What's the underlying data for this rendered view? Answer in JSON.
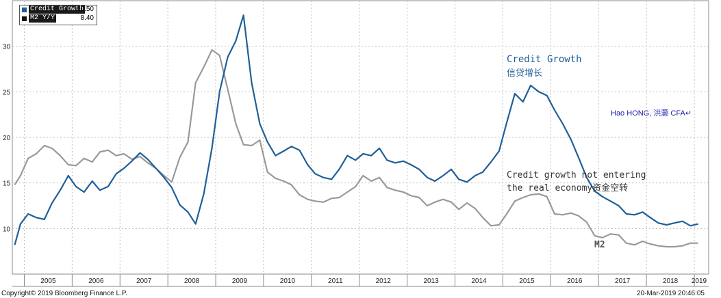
{
  "legend": {
    "items": [
      {
        "label": "Credit Growth",
        "value": "10.50",
        "color": "#1f5f99"
      },
      {
        "label": "M2 Y/Y",
        "value": "8.40",
        "color": "#111111"
      }
    ]
  },
  "annotations": {
    "credit_title": "Credit Growth",
    "credit_title_cn": "信贷增长",
    "author": "Hao HONG, 洪灏 CFA↵",
    "note_line1": "Credit growth not entering",
    "note_line2": "the real economy资金空转",
    "m2_label": "M2"
  },
  "footer": {
    "copyright": "Copyright© 2019 Bloomberg Finance L.P.",
    "timestamp": "20-Mar-2019 20:46:05"
  },
  "chart_data": {
    "type": "line",
    "x_unit": "year (decimal)",
    "xlim": [
      2004.75,
      2019.3
    ],
    "ylim": [
      5,
      35
    ],
    "yticks": [
      10,
      15,
      20,
      25,
      30
    ],
    "year_ticks": [
      "2005",
      "2006",
      "2007",
      "2008",
      "2009",
      "2010",
      "2011",
      "2012",
      "2013",
      "2014",
      "2015",
      "2016",
      "2017",
      "2018",
      "2019"
    ],
    "grid": true,
    "series": [
      {
        "name": "Credit Growth",
        "color": "#1f5f99",
        "x": [
          2004.8,
          2004.92,
          2005.08,
          2005.25,
          2005.42,
          2005.58,
          2005.75,
          2005.92,
          2006.08,
          2006.25,
          2006.42,
          2006.58,
          2006.75,
          2006.92,
          2007.08,
          2007.25,
          2007.42,
          2007.58,
          2007.75,
          2007.92,
          2008.08,
          2008.25,
          2008.42,
          2008.58,
          2008.75,
          2008.92,
          2009.08,
          2009.25,
          2009.42,
          2009.58,
          2009.75,
          2009.92,
          2010.08,
          2010.25,
          2010.42,
          2010.58,
          2010.75,
          2010.92,
          2011.08,
          2011.25,
          2011.42,
          2011.58,
          2011.75,
          2011.92,
          2012.08,
          2012.25,
          2012.42,
          2012.58,
          2012.75,
          2012.92,
          2013.08,
          2013.25,
          2013.42,
          2013.58,
          2013.75,
          2013.92,
          2014.08,
          2014.25,
          2014.42,
          2014.58,
          2014.75,
          2014.92,
          2015.08,
          2015.25,
          2015.42,
          2015.58,
          2015.75,
          2015.92,
          2016.08,
          2016.25,
          2016.42,
          2016.58,
          2016.75,
          2016.92,
          2017.08,
          2017.25,
          2017.42,
          2017.58,
          2017.75,
          2017.92,
          2018.08,
          2018.25,
          2018.42,
          2018.58,
          2018.75,
          2018.92,
          2019.08
        ],
        "y": [
          8.2,
          10.5,
          11.6,
          11.2,
          11.0,
          12.8,
          14.2,
          15.8,
          14.6,
          14.0,
          15.2,
          14.2,
          14.6,
          16.0,
          16.6,
          17.4,
          18.3,
          17.6,
          16.6,
          15.6,
          14.5,
          12.6,
          11.8,
          10.5,
          13.8,
          18.8,
          25.0,
          28.8,
          30.6,
          33.4,
          26.0,
          21.5,
          19.5,
          18.0,
          18.5,
          19.0,
          18.6,
          17.0,
          16.0,
          15.6,
          15.4,
          16.5,
          18.0,
          17.5,
          18.2,
          18.0,
          18.8,
          17.5,
          17.2,
          17.4,
          17.0,
          16.5,
          15.6,
          15.2,
          15.8,
          16.5,
          15.4,
          15.1,
          15.8,
          16.2,
          17.3,
          18.5,
          21.6,
          24.8,
          23.9,
          25.7,
          25.0,
          24.6,
          23.0,
          21.5,
          19.8,
          17.8,
          15.6,
          14.1,
          13.5,
          13.0,
          12.5,
          11.6,
          11.5,
          11.8,
          11.2,
          10.6,
          10.4,
          10.6,
          10.8,
          10.3,
          10.5
        ]
      },
      {
        "name": "M2 Y/Y",
        "color": "#999999",
        "x": [
          2004.8,
          2004.92,
          2005.08,
          2005.25,
          2005.42,
          2005.58,
          2005.75,
          2005.92,
          2006.08,
          2006.25,
          2006.42,
          2006.58,
          2006.75,
          2006.92,
          2007.08,
          2007.25,
          2007.42,
          2007.58,
          2007.75,
          2007.92,
          2008.08,
          2008.25,
          2008.42,
          2008.58,
          2008.75,
          2008.92,
          2009.08,
          2009.25,
          2009.42,
          2009.58,
          2009.75,
          2009.92,
          2010.08,
          2010.25,
          2010.42,
          2010.58,
          2010.75,
          2010.92,
          2011.08,
          2011.25,
          2011.42,
          2011.58,
          2011.75,
          2011.92,
          2012.08,
          2012.25,
          2012.42,
          2012.58,
          2012.75,
          2012.92,
          2013.08,
          2013.25,
          2013.42,
          2013.58,
          2013.75,
          2013.92,
          2014.08,
          2014.25,
          2014.42,
          2014.58,
          2014.75,
          2014.92,
          2015.08,
          2015.25,
          2015.42,
          2015.58,
          2015.75,
          2015.92,
          2016.08,
          2016.25,
          2016.42,
          2016.58,
          2016.75,
          2016.92,
          2017.08,
          2017.25,
          2017.42,
          2017.58,
          2017.75,
          2017.92,
          2018.08,
          2018.25,
          2018.42,
          2018.58,
          2018.75,
          2018.92,
          2019.08
        ],
        "y": [
          14.8,
          15.8,
          17.7,
          18.2,
          19.1,
          18.8,
          18.0,
          17.0,
          16.9,
          17.7,
          17.3,
          18.4,
          18.6,
          18.0,
          18.2,
          17.6,
          17.9,
          17.2,
          16.6,
          15.8,
          15.1,
          17.8,
          19.5,
          26.0,
          27.7,
          29.6,
          29.0,
          25.3,
          21.5,
          19.2,
          19.1,
          19.7,
          16.2,
          15.5,
          15.2,
          14.8,
          13.7,
          13.2,
          13.0,
          12.9,
          13.3,
          13.4,
          14.0,
          14.6,
          15.8,
          15.2,
          15.6,
          14.5,
          14.2,
          14.0,
          13.6,
          13.4,
          12.5,
          12.9,
          13.2,
          12.9,
          12.1,
          12.8,
          12.2,
          11.2,
          10.3,
          10.4,
          11.6,
          13.0,
          13.4,
          13.7,
          13.8,
          13.5,
          11.6,
          11.5,
          11.7,
          11.4,
          10.7,
          9.2,
          9.0,
          9.4,
          9.3,
          8.4,
          8.2,
          8.6,
          8.3,
          8.1,
          8.0,
          8.0,
          8.1,
          8.4,
          8.4
        ]
      }
    ]
  }
}
